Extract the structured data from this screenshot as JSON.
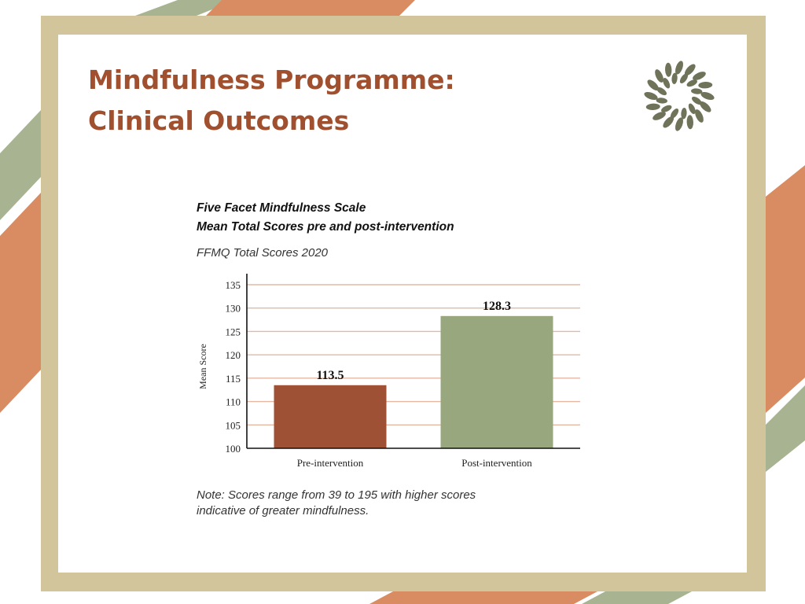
{
  "slide": {
    "title_lines": [
      "Mindfulness Programme:",
      "Clinical Outcomes"
    ],
    "logo_icon": "leaf-wreath-icon"
  },
  "colors": {
    "title": "#a0502f",
    "frame": "#d2c59c",
    "stripe_orange": "#d98b61",
    "stripe_green": "#a8b392",
    "bar_pre": "#9f5136",
    "bar_post": "#99a77f",
    "gridline": "#e4b8a2",
    "logo": "#6f7359"
  },
  "chart_title_lines": [
    "Five Facet Mindfulness Scale",
    "Mean Total Scores pre and post-intervention"
  ],
  "chart_subtitle": "FFMQ Total Scores 2020",
  "note_lines": [
    "Note: Scores range from 39 to 195 with higher scores",
    "indicative of greater mindfulness."
  ],
  "chart_data": {
    "type": "bar",
    "title": "Five Facet Mindfulness Scale Mean Total Scores pre and post-intervention",
    "subtitle": "FFMQ Total Scores 2020",
    "categories": [
      "Pre-intervention",
      "Post-intervention"
    ],
    "values": [
      113.5,
      128.3
    ],
    "value_labels": [
      "113.5",
      "128.3"
    ],
    "xlabel": "",
    "ylabel": "Mean  Score",
    "ylim": [
      100,
      135
    ],
    "yticks": [
      100,
      105,
      110,
      115,
      120,
      125,
      130,
      135
    ],
    "grid": true
  }
}
